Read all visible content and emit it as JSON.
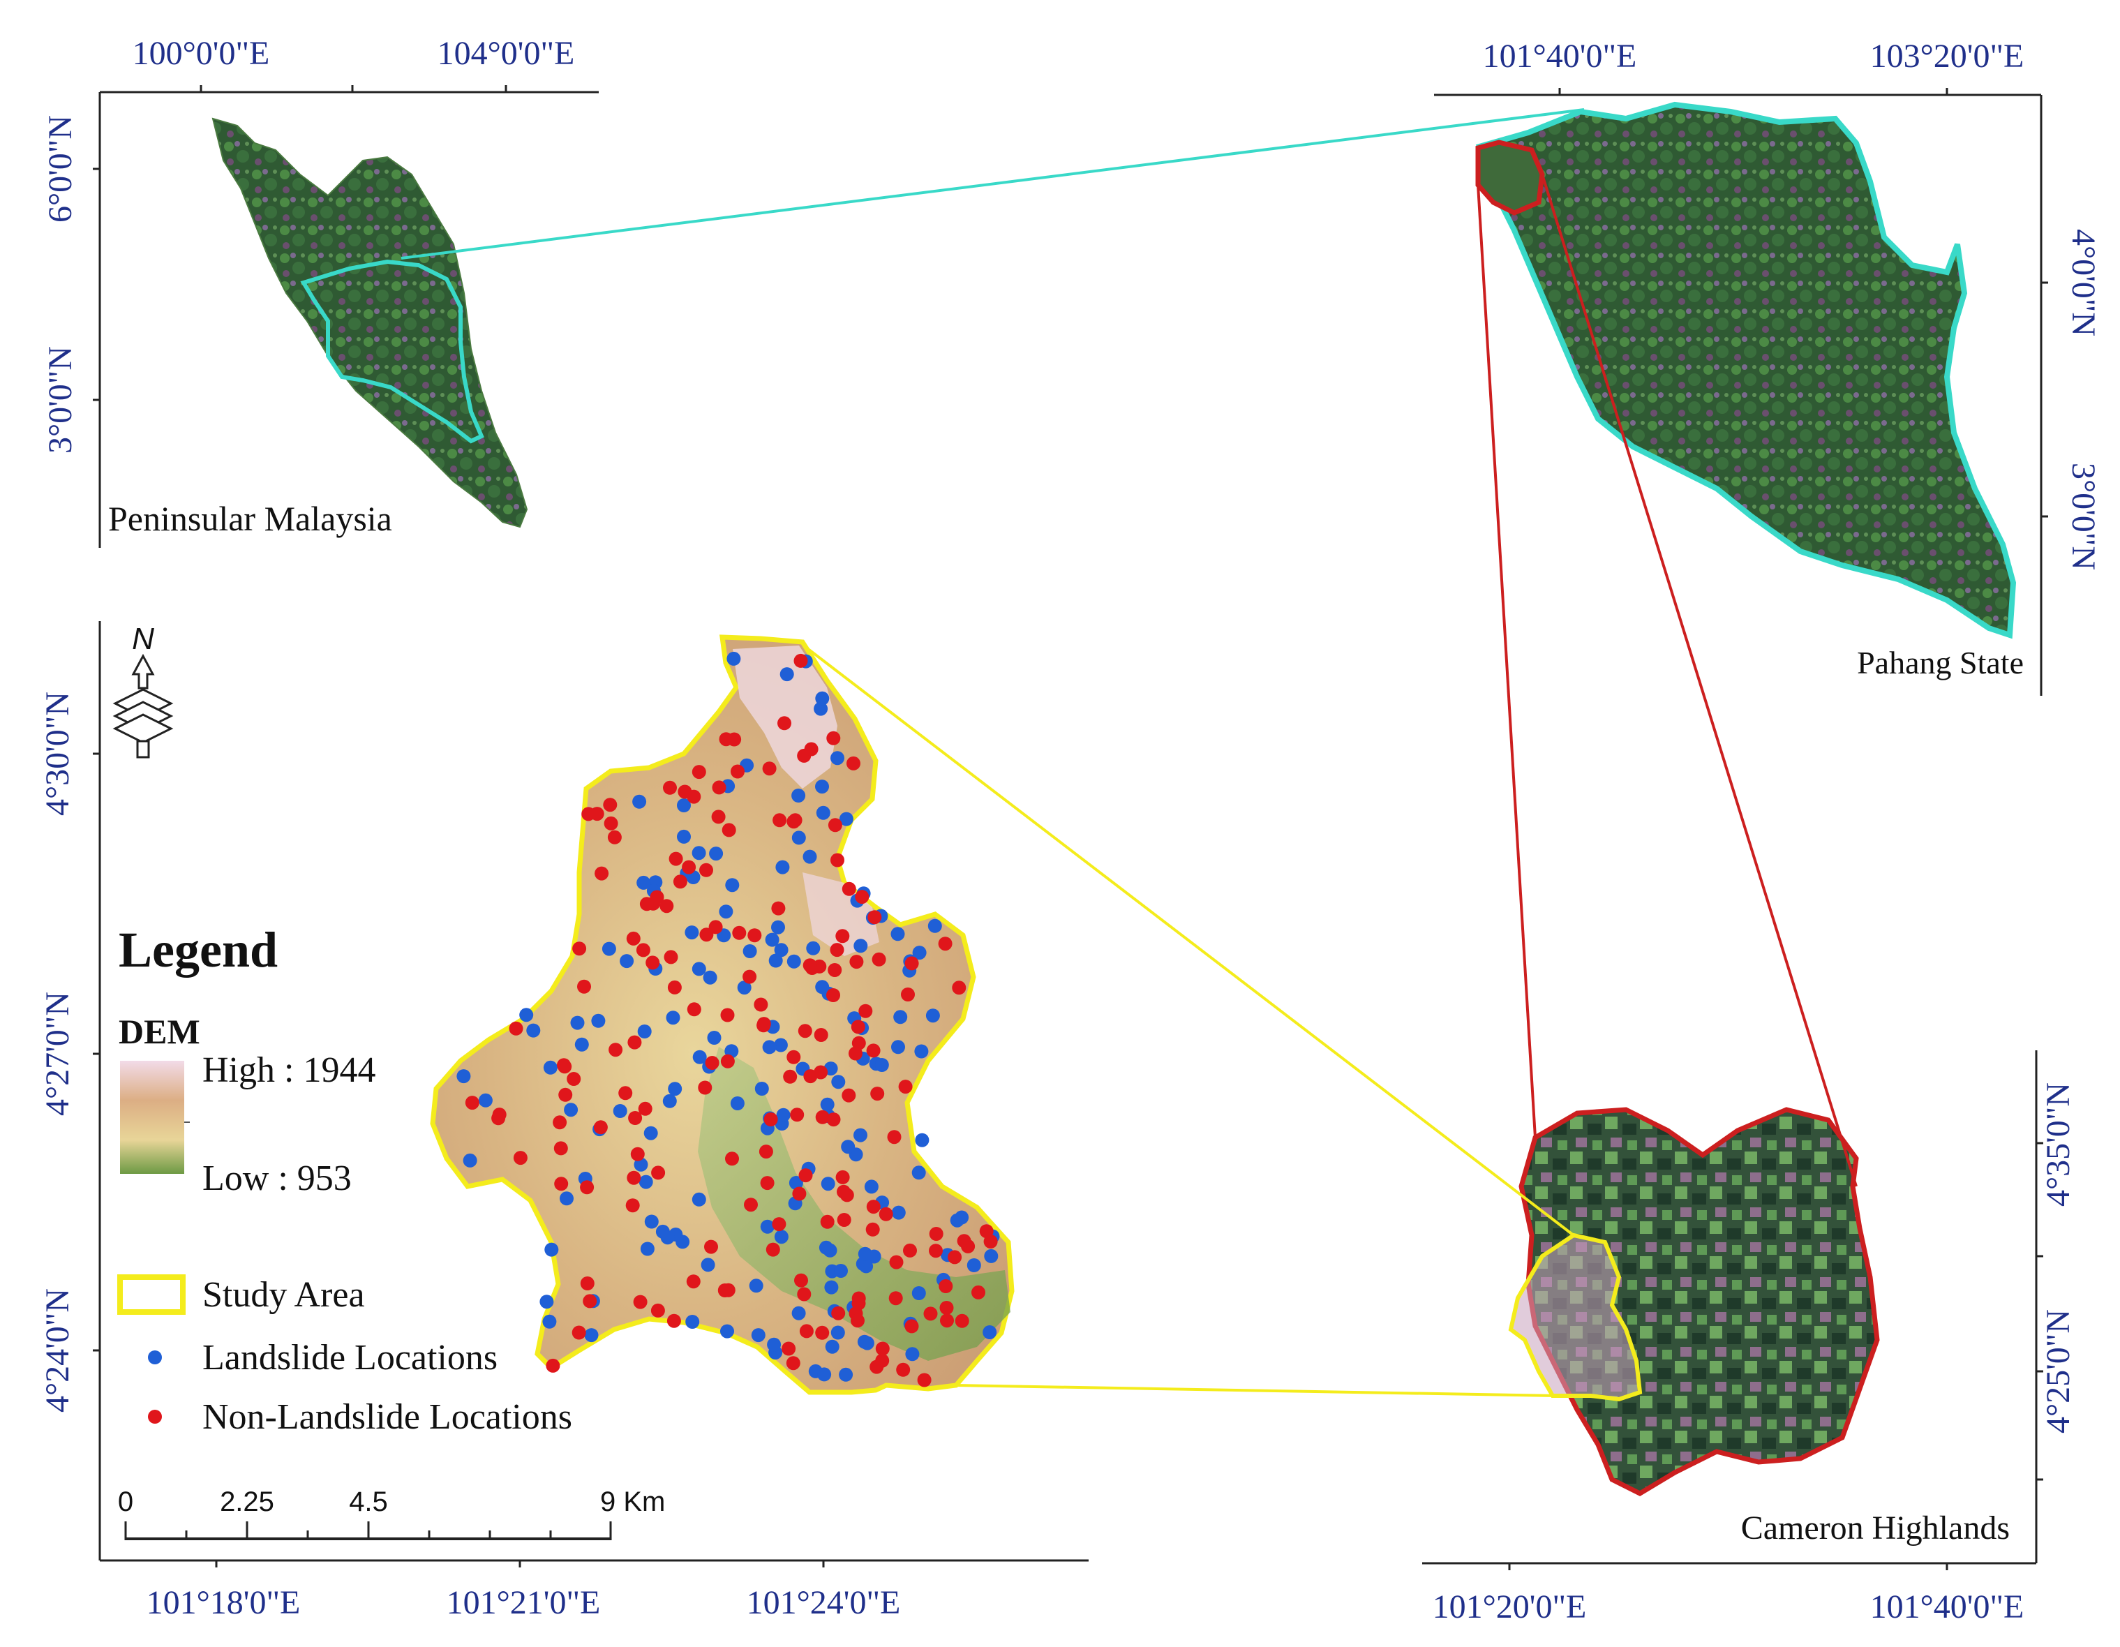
{
  "panels": {
    "peninsular": {
      "name": "Peninsular Malaysia",
      "lon_labels": [
        "100°0'0\"E",
        "104°0'0\"E"
      ],
      "lat_labels": [
        "6°0'0\"N",
        "3°0'0\"N"
      ]
    },
    "pahang": {
      "name": "Pahang State",
      "lon_labels": [
        "101°40'0\"E",
        "103°20'0\"E"
      ],
      "lat_labels": [
        "4°0'0\"N",
        "3°0'0\"N"
      ]
    },
    "cameron": {
      "name": "Cameron Highlands",
      "lon_labels": [
        "101°20'0\"E",
        "101°40'0\"E"
      ],
      "lat_labels": [
        "4°35'0\"N",
        "4°25'0\"N"
      ]
    },
    "study": {
      "lon_labels": [
        "101°18'0\"E",
        "101°21'0\"E",
        "101°24'0\"E"
      ],
      "lat_labels": [
        "4°30'0\"N",
        "4°27'0\"N",
        "4°24'0\"N"
      ]
    }
  },
  "north_arrow": {
    "label": "N"
  },
  "legend": {
    "title": "Legend",
    "dem_title": "DEM",
    "dem_high": "High : 1944",
    "dem_low": "Low : 953",
    "study_area": "Study Area",
    "landslide": "Landslide Locations",
    "non_landslide": "Non-Landslide Locations"
  },
  "scale_bar": {
    "ticks": [
      "0",
      "2.25",
      "4.5",
      "9 Km"
    ]
  },
  "colors": {
    "landslide": "#1f5fd6",
    "non_landslide": "#e0161b",
    "study_outline": "#f4ec1c",
    "pahang_outline": "#39d9c8",
    "cameron_outline": "#cc1f1f",
    "coord_text": "#1f2f8a",
    "dem_high": "#f2dbe8",
    "dem_mid": "#d9a66e",
    "dem_low": "#6d9a44"
  },
  "icons": [
    "north-arrow-icon"
  ]
}
